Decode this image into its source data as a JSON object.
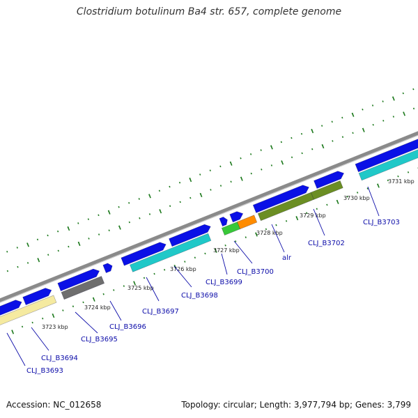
{
  "header": {
    "title": "Clostridium botulinum Ba4 str. 657, complete genome"
  },
  "footer": {
    "accession": "Accession: NC_012658",
    "summary": "Topology: circular; Length: 3,977,794 bp; Genes: 3,799"
  },
  "colors": {
    "backbone": "#8a8a8a",
    "cds_forward": "#0a10e6",
    "tick": "#1e7a1e",
    "gene_label": "#0a0aa8"
  },
  "ruler": {
    "ticks": [
      {
        "label": "3723 kbp"
      },
      {
        "label": "3724 kbp"
      },
      {
        "label": "3725 kbp"
      },
      {
        "label": "3726 kbp"
      },
      {
        "label": "3727 kbp"
      },
      {
        "label": "3728 kbp"
      },
      {
        "label": "3729 kbp"
      },
      {
        "label": "3730 kbp"
      },
      {
        "label": "3731 kbp"
      }
    ]
  },
  "gene_labels": [
    {
      "id": "g3693",
      "text": "CLJ_B3693"
    },
    {
      "id": "g3694",
      "text": "CLJ_B3694"
    },
    {
      "id": "g3695",
      "text": "CLJ_B3695"
    },
    {
      "id": "g3696",
      "text": "CLJ_B3696"
    },
    {
      "id": "g3697",
      "text": "CLJ_B3697"
    },
    {
      "id": "g3698",
      "text": "CLJ_B3698"
    },
    {
      "id": "g3699",
      "text": "CLJ_B3699"
    },
    {
      "id": "g3700",
      "text": "CLJ_B3700"
    },
    {
      "id": "galr",
      "text": "alr"
    },
    {
      "id": "g3702",
      "text": "CLJ_B3702"
    },
    {
      "id": "g3703",
      "text": "CLJ_B3703"
    }
  ],
  "cog_colors": [
    "#f5eaa0",
    "#6e6e6e",
    "#20c8c8",
    "#20c8c8",
    "#38c838",
    "#ff8c00",
    "#6b8e23",
    "#6b8e23",
    "#20c8c8",
    "#7a5ccc"
  ]
}
